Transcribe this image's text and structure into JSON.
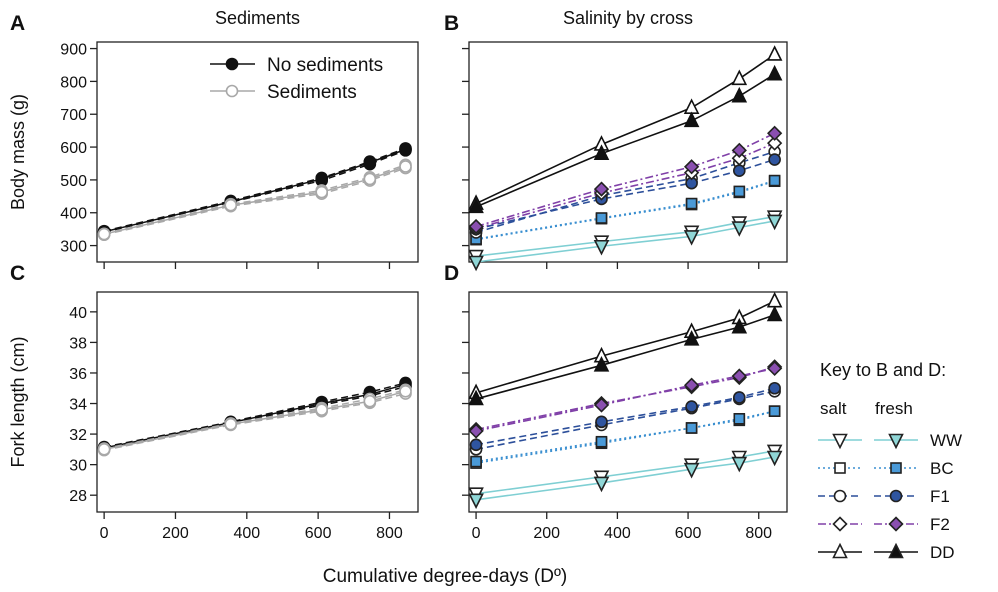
{
  "figure": {
    "x_axis_title": "Cumulative degree-days (Dº)",
    "key": {
      "title": "Key to B and D:",
      "col_salt": "salt",
      "col_fresh": "fresh",
      "rows": [
        "WW",
        "BC",
        "F1",
        "F2",
        "DD"
      ]
    }
  },
  "styles": {
    "colors": {
      "nosed": "#111111",
      "sed": "#a8a8a8",
      "WW": "#7fcfd3",
      "BC": "#3a8fd0",
      "F1": "#2c4f9a",
      "F2": "#8040a8",
      "DD": "#111111",
      "fill_WW": "#8fd6d6",
      "fill_BC": "#4a9ad8",
      "fill_F1": "#2f55a0",
      "fill_F2": "#8a4fb0",
      "fill_DD": "#111111"
    },
    "markers": {
      "WW": "triangle-down",
      "BC": "square",
      "F1": "circle",
      "F2": "diamond",
      "DD": "triangle-up"
    },
    "dashes": {
      "WW": "solid",
      "BC": "dotted",
      "F1": "dashed",
      "F2": "dash-dot",
      "DD": "solid"
    }
  },
  "chart_data": [
    {
      "panel_letter": "A",
      "title": "Sediments",
      "type": "line",
      "xlabel": "",
      "ylabel": "Body mass (g)",
      "xlim": [
        -20,
        880
      ],
      "ylim": [
        250,
        920
      ],
      "xticks": [
        0,
        200,
        400,
        600,
        800
      ],
      "yticks": [
        300,
        400,
        500,
        600,
        700,
        800,
        900
      ],
      "show_xticklabels": false,
      "legend": {
        "placement": "top-right",
        "entries": [
          "No sediments",
          "Sediments"
        ]
      },
      "series": [
        {
          "name": "No sediments",
          "line": "dashed",
          "color": "nosed",
          "marker": "circle",
          "filled": true,
          "x": [
            0,
            355,
            610,
            745,
            845
          ],
          "y": [
            344,
            436,
            506,
            556,
            596
          ]
        },
        {
          "name": "No sediments",
          "line": "dashed",
          "color": "nosed",
          "marker": "circle",
          "filled": true,
          "x": [
            0,
            355,
            610,
            745,
            845
          ],
          "y": [
            341,
            432,
            498,
            548,
            590
          ]
        },
        {
          "name": "No sediments",
          "line": "solid",
          "color": "nosed",
          "marker": "circle",
          "filled": true,
          "x": [
            0,
            355,
            610,
            745,
            845
          ],
          "y": [
            342,
            433,
            503,
            553,
            593
          ]
        },
        {
          "name": "Sediments",
          "line": "dashed",
          "color": "sed",
          "marker": "circle",
          "filled": false,
          "x": [
            0,
            355,
            610,
            745,
            845
          ],
          "y": [
            336,
            426,
            468,
            508,
            546
          ]
        },
        {
          "name": "Sediments",
          "line": "dashed",
          "color": "sed",
          "marker": "circle",
          "filled": false,
          "x": [
            0,
            355,
            610,
            745,
            845
          ],
          "y": [
            333,
            420,
            458,
            498,
            536
          ]
        },
        {
          "name": "Sediments",
          "line": "solid",
          "color": "sed",
          "marker": "circle",
          "filled": false,
          "x": [
            0,
            355,
            610,
            745,
            845
          ],
          "y": [
            335,
            423,
            463,
            503,
            541
          ]
        }
      ]
    },
    {
      "panel_letter": "B",
      "title": "Salinity by cross",
      "type": "line",
      "xlabel": "",
      "ylabel": "",
      "xlim": [
        -20,
        880
      ],
      "ylim": [
        250,
        920
      ],
      "xticks": [
        0,
        200,
        400,
        600,
        800
      ],
      "yticks": [
        300,
        400,
        500,
        600,
        700,
        800,
        900
      ],
      "show_xticklabels": false,
      "show_yticklabels": false,
      "series": [
        {
          "name": "WW salt",
          "group": "WW",
          "filled": false,
          "x": [
            0,
            355,
            610,
            745,
            845
          ],
          "y": [
            268,
            312,
            342,
            370,
            388
          ]
        },
        {
          "name": "WW fresh",
          "group": "WW",
          "filled": true,
          "x": [
            0,
            355,
            610,
            745,
            845
          ],
          "y": [
            250,
            298,
            328,
            355,
            375
          ]
        },
        {
          "name": "BC salt",
          "group": "BC",
          "filled": false,
          "x": [
            0,
            355,
            610,
            745,
            845
          ],
          "y": [
            318,
            382,
            425,
            462,
            496
          ]
        },
        {
          "name": "BC fresh",
          "group": "BC",
          "filled": true,
          "x": [
            0,
            355,
            610,
            745,
            845
          ],
          "y": [
            320,
            384,
            428,
            465,
            498
          ]
        },
        {
          "name": "F1 salt",
          "group": "F1",
          "filled": false,
          "x": [
            0,
            355,
            610,
            745,
            845
          ],
          "y": [
            340,
            452,
            504,
            552,
            586
          ]
        },
        {
          "name": "F1 fresh",
          "group": "F1",
          "filled": true,
          "x": [
            0,
            355,
            610,
            745,
            845
          ],
          "y": [
            350,
            442,
            490,
            528,
            562
          ]
        },
        {
          "name": "F2 salt",
          "group": "F2",
          "filled": false,
          "x": [
            0,
            355,
            610,
            745,
            845
          ],
          "y": [
            352,
            460,
            522,
            566,
            612
          ]
        },
        {
          "name": "F2 fresh",
          "group": "F2",
          "filled": true,
          "x": [
            0,
            355,
            610,
            745,
            845
          ],
          "y": [
            358,
            472,
            540,
            590,
            642
          ]
        },
        {
          "name": "DD salt",
          "group": "DD",
          "filled": false,
          "x": [
            0,
            355,
            610,
            745,
            845
          ],
          "y": [
            428,
            608,
            720,
            808,
            882
          ]
        },
        {
          "name": "DD fresh",
          "group": "DD",
          "filled": true,
          "x": [
            0,
            355,
            610,
            745,
            845
          ],
          "y": [
            418,
            580,
            680,
            755,
            822
          ]
        }
      ]
    },
    {
      "panel_letter": "C",
      "title": "",
      "type": "line",
      "xlabel": "",
      "ylabel": "Fork length (cm)",
      "xlim": [
        -20,
        880
      ],
      "ylim": [
        26.9,
        41.3
      ],
      "xticks": [
        0,
        200,
        400,
        600,
        800
      ],
      "yticks": [
        28,
        30,
        32,
        34,
        36,
        38,
        40
      ],
      "show_xticklabels": true,
      "series": [
        {
          "name": "No sediments",
          "line": "dashed",
          "color": "nosed",
          "marker": "circle",
          "filled": true,
          "x": [
            0,
            355,
            610,
            745,
            845
          ],
          "y": [
            31.15,
            32.8,
            34.1,
            34.75,
            35.35
          ]
        },
        {
          "name": "No sediments",
          "line": "dashed",
          "color": "nosed",
          "marker": "circle",
          "filled": true,
          "x": [
            0,
            355,
            610,
            745,
            845
          ],
          "y": [
            31.05,
            32.7,
            33.9,
            34.5,
            35.1
          ]
        },
        {
          "name": "No sediments",
          "line": "solid",
          "color": "nosed",
          "marker": "circle",
          "filled": true,
          "x": [
            0,
            355,
            610,
            745,
            845
          ],
          "y": [
            31.1,
            32.75,
            34.0,
            34.6,
            35.25
          ]
        },
        {
          "name": "Sediments",
          "line": "dashed",
          "color": "sed",
          "marker": "circle",
          "filled": false,
          "x": [
            0,
            355,
            610,
            745,
            845
          ],
          "y": [
            31.05,
            32.7,
            33.7,
            34.3,
            34.9
          ]
        },
        {
          "name": "Sediments",
          "line": "dashed",
          "color": "sed",
          "marker": "circle",
          "filled": false,
          "x": [
            0,
            355,
            610,
            745,
            845
          ],
          "y": [
            30.95,
            32.6,
            33.5,
            34.05,
            34.65
          ]
        },
        {
          "name": "Sediments",
          "line": "solid",
          "color": "sed",
          "marker": "circle",
          "filled": false,
          "x": [
            0,
            355,
            610,
            745,
            845
          ],
          "y": [
            31.0,
            32.65,
            33.6,
            34.15,
            34.8
          ]
        }
      ]
    },
    {
      "panel_letter": "D",
      "title": "",
      "type": "line",
      "xlabel": "",
      "ylabel": "",
      "xlim": [
        -20,
        880
      ],
      "ylim": [
        26.9,
        41.3
      ],
      "xticks": [
        0,
        200,
        400,
        600,
        800
      ],
      "yticks": [
        28,
        30,
        32,
        34,
        36,
        38,
        40
      ],
      "show_xticklabels": true,
      "show_yticklabels": false,
      "series": [
        {
          "name": "WW salt",
          "group": "WW",
          "filled": false,
          "x": [
            0,
            355,
            610,
            745,
            845
          ],
          "y": [
            28.1,
            29.2,
            30.0,
            30.5,
            30.9
          ]
        },
        {
          "name": "WW fresh",
          "group": "WW",
          "filled": true,
          "x": [
            0,
            355,
            610,
            745,
            845
          ],
          "y": [
            27.7,
            28.8,
            29.7,
            30.1,
            30.5
          ]
        },
        {
          "name": "BC salt",
          "group": "BC",
          "filled": false,
          "x": [
            0,
            355,
            610,
            745,
            845
          ],
          "y": [
            30.1,
            31.4,
            32.4,
            32.9,
            33.5
          ]
        },
        {
          "name": "BC fresh",
          "group": "BC",
          "filled": true,
          "x": [
            0,
            355,
            610,
            745,
            845
          ],
          "y": [
            30.2,
            31.5,
            32.4,
            33.0,
            33.5
          ]
        },
        {
          "name": "F1 salt",
          "group": "F1",
          "filled": false,
          "x": [
            0,
            355,
            610,
            745,
            845
          ],
          "y": [
            31.0,
            32.6,
            33.7,
            34.3,
            34.8
          ]
        },
        {
          "name": "F1 fresh",
          "group": "F1",
          "filled": true,
          "x": [
            0,
            355,
            610,
            745,
            845
          ],
          "y": [
            31.3,
            32.8,
            33.8,
            34.4,
            35.0
          ]
        },
        {
          "name": "F2 salt",
          "group": "F2",
          "filled": false,
          "x": [
            0,
            355,
            610,
            745,
            845
          ],
          "y": [
            32.3,
            34.0,
            35.1,
            35.7,
            36.4
          ]
        },
        {
          "name": "F2 fresh",
          "group": "F2",
          "filled": true,
          "x": [
            0,
            355,
            610,
            745,
            845
          ],
          "y": [
            32.2,
            33.9,
            35.2,
            35.8,
            36.3
          ]
        },
        {
          "name": "DD salt",
          "group": "DD",
          "filled": false,
          "x": [
            0,
            355,
            610,
            745,
            845
          ],
          "y": [
            34.7,
            37.1,
            38.7,
            39.6,
            40.7
          ]
        },
        {
          "name": "DD fresh",
          "group": "DD",
          "filled": true,
          "x": [
            0,
            355,
            610,
            745,
            845
          ],
          "y": [
            34.3,
            36.5,
            38.2,
            39.0,
            39.8
          ]
        }
      ]
    }
  ]
}
